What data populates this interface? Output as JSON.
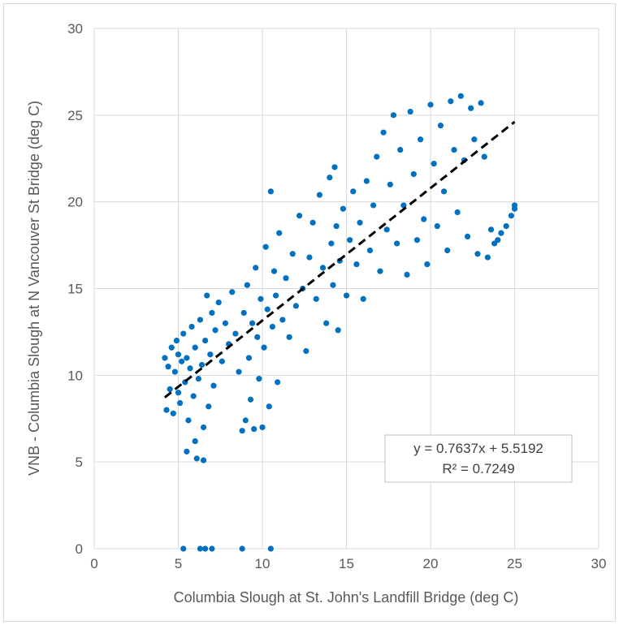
{
  "chart_data": {
    "type": "scatter",
    "title": "",
    "xlabel": "Columbia Slough at St. John's Landfill Bridge (deg C)",
    "ylabel": "VNB - Columbia Slough at  N Vancouver St Bridge (deg C)",
    "xlim": [
      0,
      30
    ],
    "ylim": [
      0,
      30
    ],
    "x_ticks": [
      "0",
      "5",
      "10",
      "15",
      "20",
      "25",
      "30"
    ],
    "y_ticks": [
      "0",
      "5",
      "10",
      "15",
      "20",
      "25",
      "30"
    ],
    "grid": true,
    "legend": "none",
    "series": [
      {
        "color": "#0070c0",
        "points": [
          [
            4.2,
            11.0
          ],
          [
            4.3,
            8.0
          ],
          [
            4.4,
            10.5
          ],
          [
            4.5,
            9.2
          ],
          [
            4.6,
            11.6
          ],
          [
            4.7,
            7.8
          ],
          [
            4.8,
            10.2
          ],
          [
            4.9,
            12.0
          ],
          [
            5.0,
            9.0
          ],
          [
            5.0,
            11.2
          ],
          [
            5.1,
            8.4
          ],
          [
            5.2,
            10.8
          ],
          [
            5.3,
            12.4
          ],
          [
            5.4,
            9.6
          ],
          [
            5.5,
            5.6
          ],
          [
            5.5,
            11.0
          ],
          [
            5.6,
            7.4
          ],
          [
            5.7,
            10.4
          ],
          [
            5.8,
            12.8
          ],
          [
            5.9,
            8.8
          ],
          [
            6.0,
            6.2
          ],
          [
            6.0,
            11.6
          ],
          [
            6.1,
            5.2
          ],
          [
            6.2,
            9.8
          ],
          [
            6.3,
            13.2
          ],
          [
            6.4,
            10.6
          ],
          [
            6.5,
            5.1
          ],
          [
            6.5,
            7.0
          ],
          [
            6.6,
            12.0
          ],
          [
            6.7,
            14.6
          ],
          [
            6.8,
            8.2
          ],
          [
            6.9,
            11.2
          ],
          [
            7.0,
            13.6
          ],
          [
            7.1,
            9.4
          ],
          [
            7.2,
            12.6
          ],
          [
            7.4,
            14.2
          ],
          [
            7.6,
            10.8
          ],
          [
            7.8,
            13.0
          ],
          [
            8.0,
            11.8
          ],
          [
            8.2,
            14.8
          ],
          [
            8.4,
            12.4
          ],
          [
            8.6,
            10.2
          ],
          [
            8.8,
            6.8
          ],
          [
            8.9,
            13.6
          ],
          [
            9.0,
            7.4
          ],
          [
            9.1,
            15.2
          ],
          [
            9.2,
            11.0
          ],
          [
            9.3,
            8.6
          ],
          [
            9.4,
            13.0
          ],
          [
            9.5,
            6.9
          ],
          [
            9.6,
            16.2
          ],
          [
            9.7,
            12.2
          ],
          [
            9.8,
            9.8
          ],
          [
            9.9,
            14.4
          ],
          [
            10.0,
            7.0
          ],
          [
            10.1,
            11.6
          ],
          [
            10.2,
            17.4
          ],
          [
            10.3,
            13.8
          ],
          [
            10.4,
            8.2
          ],
          [
            10.5,
            20.6
          ],
          [
            10.6,
            12.8
          ],
          [
            10.7,
            16.0
          ],
          [
            10.8,
            14.6
          ],
          [
            10.9,
            9.6
          ],
          [
            11.0,
            18.2
          ],
          [
            11.2,
            13.2
          ],
          [
            11.4,
            15.6
          ],
          [
            11.6,
            12.2
          ],
          [
            11.8,
            17.0
          ],
          [
            12.0,
            14.0
          ],
          [
            12.2,
            19.2
          ],
          [
            12.4,
            15.0
          ],
          [
            12.6,
            11.4
          ],
          [
            12.8,
            16.8
          ],
          [
            13.0,
            18.8
          ],
          [
            13.2,
            14.4
          ],
          [
            13.4,
            20.4
          ],
          [
            13.6,
            16.2
          ],
          [
            13.8,
            13.0
          ],
          [
            14.0,
            21.4
          ],
          [
            14.1,
            17.6
          ],
          [
            14.2,
            15.2
          ],
          [
            14.3,
            22.0
          ],
          [
            14.4,
            18.6
          ],
          [
            14.5,
            12.6
          ],
          [
            14.6,
            16.6
          ],
          [
            14.8,
            19.6
          ],
          [
            15.0,
            14.6
          ],
          [
            15.2,
            17.8
          ],
          [
            15.4,
            20.6
          ],
          [
            15.6,
            16.4
          ],
          [
            15.8,
            18.8
          ],
          [
            16.0,
            14.4
          ],
          [
            16.2,
            21.2
          ],
          [
            16.4,
            17.2
          ],
          [
            16.6,
            19.8
          ],
          [
            16.8,
            22.6
          ],
          [
            17.0,
            16.0
          ],
          [
            17.2,
            24.0
          ],
          [
            17.4,
            18.4
          ],
          [
            17.6,
            21.0
          ],
          [
            17.8,
            25.0
          ],
          [
            18.0,
            17.6
          ],
          [
            18.2,
            23.0
          ],
          [
            18.4,
            19.8
          ],
          [
            18.6,
            15.8
          ],
          [
            18.8,
            25.2
          ],
          [
            19.0,
            21.6
          ],
          [
            19.2,
            17.8
          ],
          [
            19.4,
            23.6
          ],
          [
            19.6,
            19.0
          ],
          [
            19.8,
            16.4
          ],
          [
            20.0,
            25.6
          ],
          [
            20.2,
            22.2
          ],
          [
            20.4,
            18.6
          ],
          [
            20.6,
            24.4
          ],
          [
            20.8,
            20.6
          ],
          [
            21.0,
            17.2
          ],
          [
            21.2,
            25.8
          ],
          [
            21.4,
            23.0
          ],
          [
            21.6,
            19.4
          ],
          [
            21.8,
            26.1
          ],
          [
            22.0,
            22.4
          ],
          [
            22.2,
            18.0
          ],
          [
            22.4,
            25.4
          ],
          [
            22.6,
            23.6
          ],
          [
            22.8,
            17.0
          ],
          [
            23.0,
            25.7
          ],
          [
            23.2,
            22.6
          ],
          [
            23.4,
            16.8
          ],
          [
            23.6,
            18.4
          ],
          [
            23.8,
            17.6
          ],
          [
            24.0,
            17.8
          ],
          [
            24.2,
            18.2
          ],
          [
            24.5,
            18.6
          ],
          [
            24.8,
            19.2
          ],
          [
            25.0,
            19.6
          ],
          [
            25.0,
            19.8
          ],
          [
            5.3,
            0.0
          ],
          [
            6.3,
            0.0
          ],
          [
            6.6,
            0.0
          ],
          [
            7.0,
            0.0
          ],
          [
            8.8,
            0.0
          ],
          [
            10.5,
            0.0
          ]
        ]
      }
    ],
    "trendline": {
      "type": "linear",
      "slope": 0.7637,
      "intercept": 5.5192,
      "x_range": [
        4.2,
        25.0
      ],
      "style": "dashed",
      "color": "#000000",
      "equation_label": "y = 0.7637x + 5.5192",
      "r2_label": "R² = 0.7249"
    }
  }
}
